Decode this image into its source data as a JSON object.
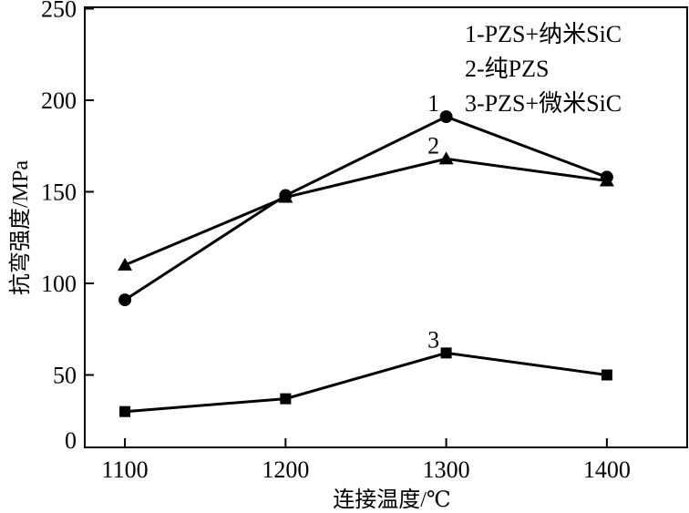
{
  "chart_data": {
    "type": "line",
    "title": "",
    "xlabel": "连接温度/℃",
    "ylabel": "抗弯强度/MPa",
    "x": [
      1100,
      1200,
      1300,
      1400
    ],
    "xticks": [
      "1100",
      "1200",
      "1300",
      "1400"
    ],
    "yticks": [
      "0",
      "50",
      "100",
      "150",
      "200",
      "250"
    ],
    "xlim": [
      1075,
      1450
    ],
    "ylim": [
      -10,
      250
    ],
    "grid": false,
    "legend_position": "top-right",
    "series": [
      {
        "name": "1-PZS+纳米SiC",
        "label": "1",
        "marker": "circle",
        "values": [
          91,
          148,
          191,
          158
        ]
      },
      {
        "name": "2-纯PZS",
        "label": "2",
        "marker": "triangle",
        "values": [
          110,
          147,
          168,
          156
        ]
      },
      {
        "name": "3-PZS+微米SiC",
        "label": "3",
        "marker": "square",
        "values": [
          30,
          37,
          62,
          50
        ]
      }
    ]
  }
}
